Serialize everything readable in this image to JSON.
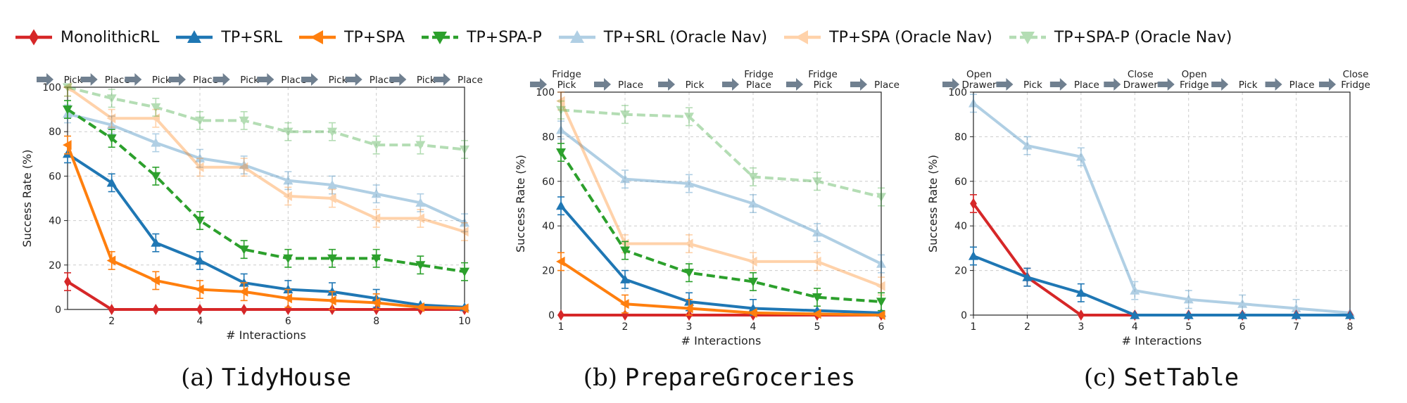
{
  "legend": [
    {
      "name": "MonolithicRL",
      "color": "#d62728",
      "marker": "diamond",
      "dash": false,
      "alpha": 1
    },
    {
      "name": "TP+SRL",
      "color": "#1f77b4",
      "marker": "triangle-up",
      "dash": false,
      "alpha": 1
    },
    {
      "name": "TP+SPA",
      "color": "#ff7f0e",
      "marker": "triangle-left",
      "dash": false,
      "alpha": 1
    },
    {
      "name": "TP+SPA-P",
      "color": "#2ca02c",
      "marker": "triangle-down",
      "dash": true,
      "alpha": 1
    },
    {
      "name": "TP+SRL (Oracle Nav)",
      "color": "#1f77b4",
      "marker": "triangle-up",
      "dash": false,
      "alpha": 0.35
    },
    {
      "name": "TP+SPA (Oracle Nav)",
      "color": "#ff7f0e",
      "marker": "triangle-left",
      "dash": false,
      "alpha": 0.35
    },
    {
      "name": "TP+SPA-P (Oracle Nav)",
      "color": "#2ca02c",
      "marker": "triangle-down",
      "dash": true,
      "alpha": 0.35
    }
  ],
  "chart_data": [
    {
      "type": "line",
      "caption_prefix": "(a)",
      "caption_name": "TidyHouse",
      "xlabel": "# Interactions",
      "ylabel": "Success Rate (%)",
      "xlim": [
        1,
        10
      ],
      "ylim": [
        0,
        100
      ],
      "xticks": [
        2,
        4,
        6,
        8,
        10
      ],
      "yticks": [
        0,
        20,
        40,
        60,
        80,
        100
      ],
      "stages": [
        "Pick",
        "Place",
        "Pick",
        "Place",
        "Pick",
        "Place",
        "Pick",
        "Place",
        "Pick",
        "Place"
      ],
      "x": [
        1,
        2,
        3,
        4,
        5,
        6,
        7,
        8,
        9,
        10
      ],
      "series": [
        {
          "name": "MonolithicRL",
          "values": [
            12.5,
            0,
            0,
            0,
            0,
            0,
            0,
            0,
            0,
            0
          ]
        },
        {
          "name": "TP+SRL",
          "values": [
            70,
            57,
            30,
            22,
            12,
            9,
            8,
            5,
            2,
            1
          ]
        },
        {
          "name": "TP+SPA",
          "values": [
            74,
            22,
            13,
            9,
            8,
            5,
            4,
            3,
            1,
            0.5
          ]
        },
        {
          "name": "TP+SPA-P",
          "values": [
            90,
            77,
            60,
            40,
            27,
            23,
            23,
            23,
            20,
            17
          ]
        },
        {
          "name": "TP+SRL (Oracle Nav)",
          "values": [
            88,
            83,
            75,
            68,
            65,
            58,
            56,
            52,
            48,
            39
          ]
        },
        {
          "name": "TP+SPA (Oracle Nav)",
          "values": [
            100,
            86,
            86,
            64,
            64,
            51,
            50,
            41,
            41,
            35
          ]
        },
        {
          "name": "TP+SPA-P (Oracle Nav)",
          "values": [
            100,
            95,
            91,
            85,
            85,
            80,
            80,
            74,
            74,
            72
          ]
        }
      ]
    },
    {
      "type": "line",
      "caption_prefix": "(b)",
      "caption_name": "PrepareGroceries",
      "xlabel": "# Interactions",
      "ylabel": "Success Rate (%)",
      "xlim": [
        1,
        6
      ],
      "ylim": [
        0,
        100
      ],
      "xticks": [
        1,
        2,
        3,
        4,
        5,
        6
      ],
      "yticks": [
        0,
        20,
        40,
        60,
        80,
        100
      ],
      "stages": [
        "Fridge\nPick",
        "Place",
        "Pick",
        "Fridge\nPlace",
        "Fridge\nPick",
        "Place"
      ],
      "x": [
        1,
        2,
        3,
        4,
        5,
        6
      ],
      "series": [
        {
          "name": "MonolithicRL",
          "values": [
            0,
            0,
            0,
            0,
            0,
            0
          ]
        },
        {
          "name": "TP+SRL",
          "values": [
            49,
            16,
            6,
            3,
            2,
            1
          ]
        },
        {
          "name": "TP+SPA",
          "values": [
            24,
            5,
            3,
            1,
            0.5,
            0
          ]
        },
        {
          "name": "TP+SPA-P",
          "values": [
            73,
            29,
            19,
            15,
            8,
            6
          ]
        },
        {
          "name": "TP+SRL (Oracle Nav)",
          "values": [
            83,
            61,
            59,
            50,
            37,
            23
          ]
        },
        {
          "name": "TP+SPA (Oracle Nav)",
          "values": [
            96,
            32,
            32,
            24,
            24,
            13
          ]
        },
        {
          "name": "TP+SPA-P (Oracle Nav)",
          "values": [
            92,
            90,
            89,
            62,
            60,
            53
          ]
        }
      ]
    },
    {
      "type": "line",
      "caption_prefix": "(c)",
      "caption_name": "SetTable",
      "xlabel": "# Interactions",
      "ylabel": "Success Rate (%)",
      "xlim": [
        1,
        8
      ],
      "ylim": [
        0,
        100
      ],
      "xticks": [
        1,
        2,
        3,
        4,
        5,
        6,
        7,
        8
      ],
      "yticks": [
        0,
        20,
        40,
        60,
        80,
        100
      ],
      "stages": [
        "Open\nDrawer",
        "Pick",
        "Place",
        "Close\nDrawer",
        "Open\nFridge",
        "Pick",
        "Place",
        "Close\nFridge"
      ],
      "x": [
        1,
        2,
        3,
        4,
        5,
        6,
        7,
        8
      ],
      "series": [
        {
          "name": "MonolithicRL",
          "values": [
            50,
            17,
            0,
            0,
            0,
            0,
            0,
            0
          ]
        },
        {
          "name": "TP+SRL",
          "values": [
            26.5,
            17,
            10,
            0,
            0,
            0,
            0,
            0
          ]
        },
        {
          "name": "TP+SRL (Oracle Nav)",
          "values": [
            95,
            76,
            71,
            11,
            7,
            5,
            3,
            1
          ]
        }
      ]
    }
  ]
}
